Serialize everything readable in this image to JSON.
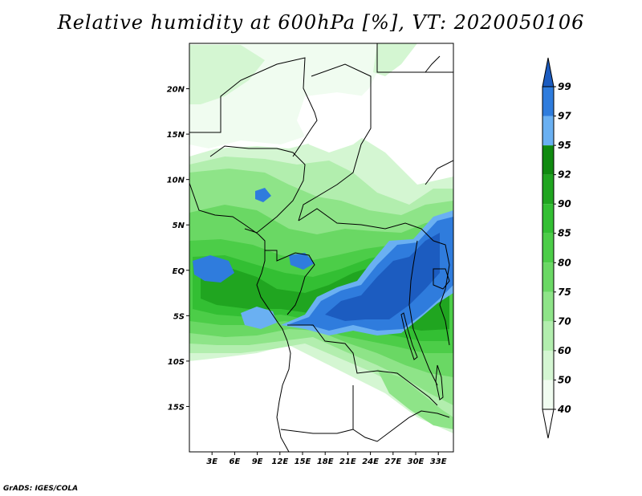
{
  "title": "Relative humidity at 600hPa [%], VT: 2020050106",
  "credit": "GrADS: IGES/COLA",
  "map": {
    "lon_range": [
      0,
      35
    ],
    "lat_range": [
      -20,
      25
    ],
    "lat_ticks": [
      {
        "value": 20,
        "label": "20N"
      },
      {
        "value": 15,
        "label": "15N"
      },
      {
        "value": 10,
        "label": "10N"
      },
      {
        "value": 5,
        "label": "5N"
      },
      {
        "value": 0,
        "label": "EQ"
      },
      {
        "value": -5,
        "label": "5S"
      },
      {
        "value": -10,
        "label": "10S"
      },
      {
        "value": -15,
        "label": "15S"
      }
    ],
    "lon_ticks": [
      {
        "value": 3,
        "label": "3E"
      },
      {
        "value": 6,
        "label": "6E"
      },
      {
        "value": 9,
        "label": "9E"
      },
      {
        "value": 12,
        "label": "12E"
      },
      {
        "value": 15,
        "label": "15E"
      },
      {
        "value": 18,
        "label": "18E"
      },
      {
        "value": 21,
        "label": "21E"
      },
      {
        "value": 24,
        "label": "24E"
      },
      {
        "value": 27,
        "label": "27E"
      },
      {
        "value": 30,
        "label": "30E"
      },
      {
        "value": 33,
        "label": "33E"
      }
    ]
  },
  "colorbar": {
    "levels": [
      "40",
      "50",
      "60",
      "70",
      "75",
      "80",
      "85",
      "90",
      "92",
      "95",
      "97",
      "99"
    ],
    "colors": [
      "#f0fcf0",
      "#d4f6d2",
      "#b2eeae",
      "#8ee488",
      "#6ad864",
      "#4ccd48",
      "#33bf33",
      "#20a520",
      "#108a10",
      "#6ab0f2",
      "#2f7cdd",
      "#1c5cc0"
    ]
  }
}
